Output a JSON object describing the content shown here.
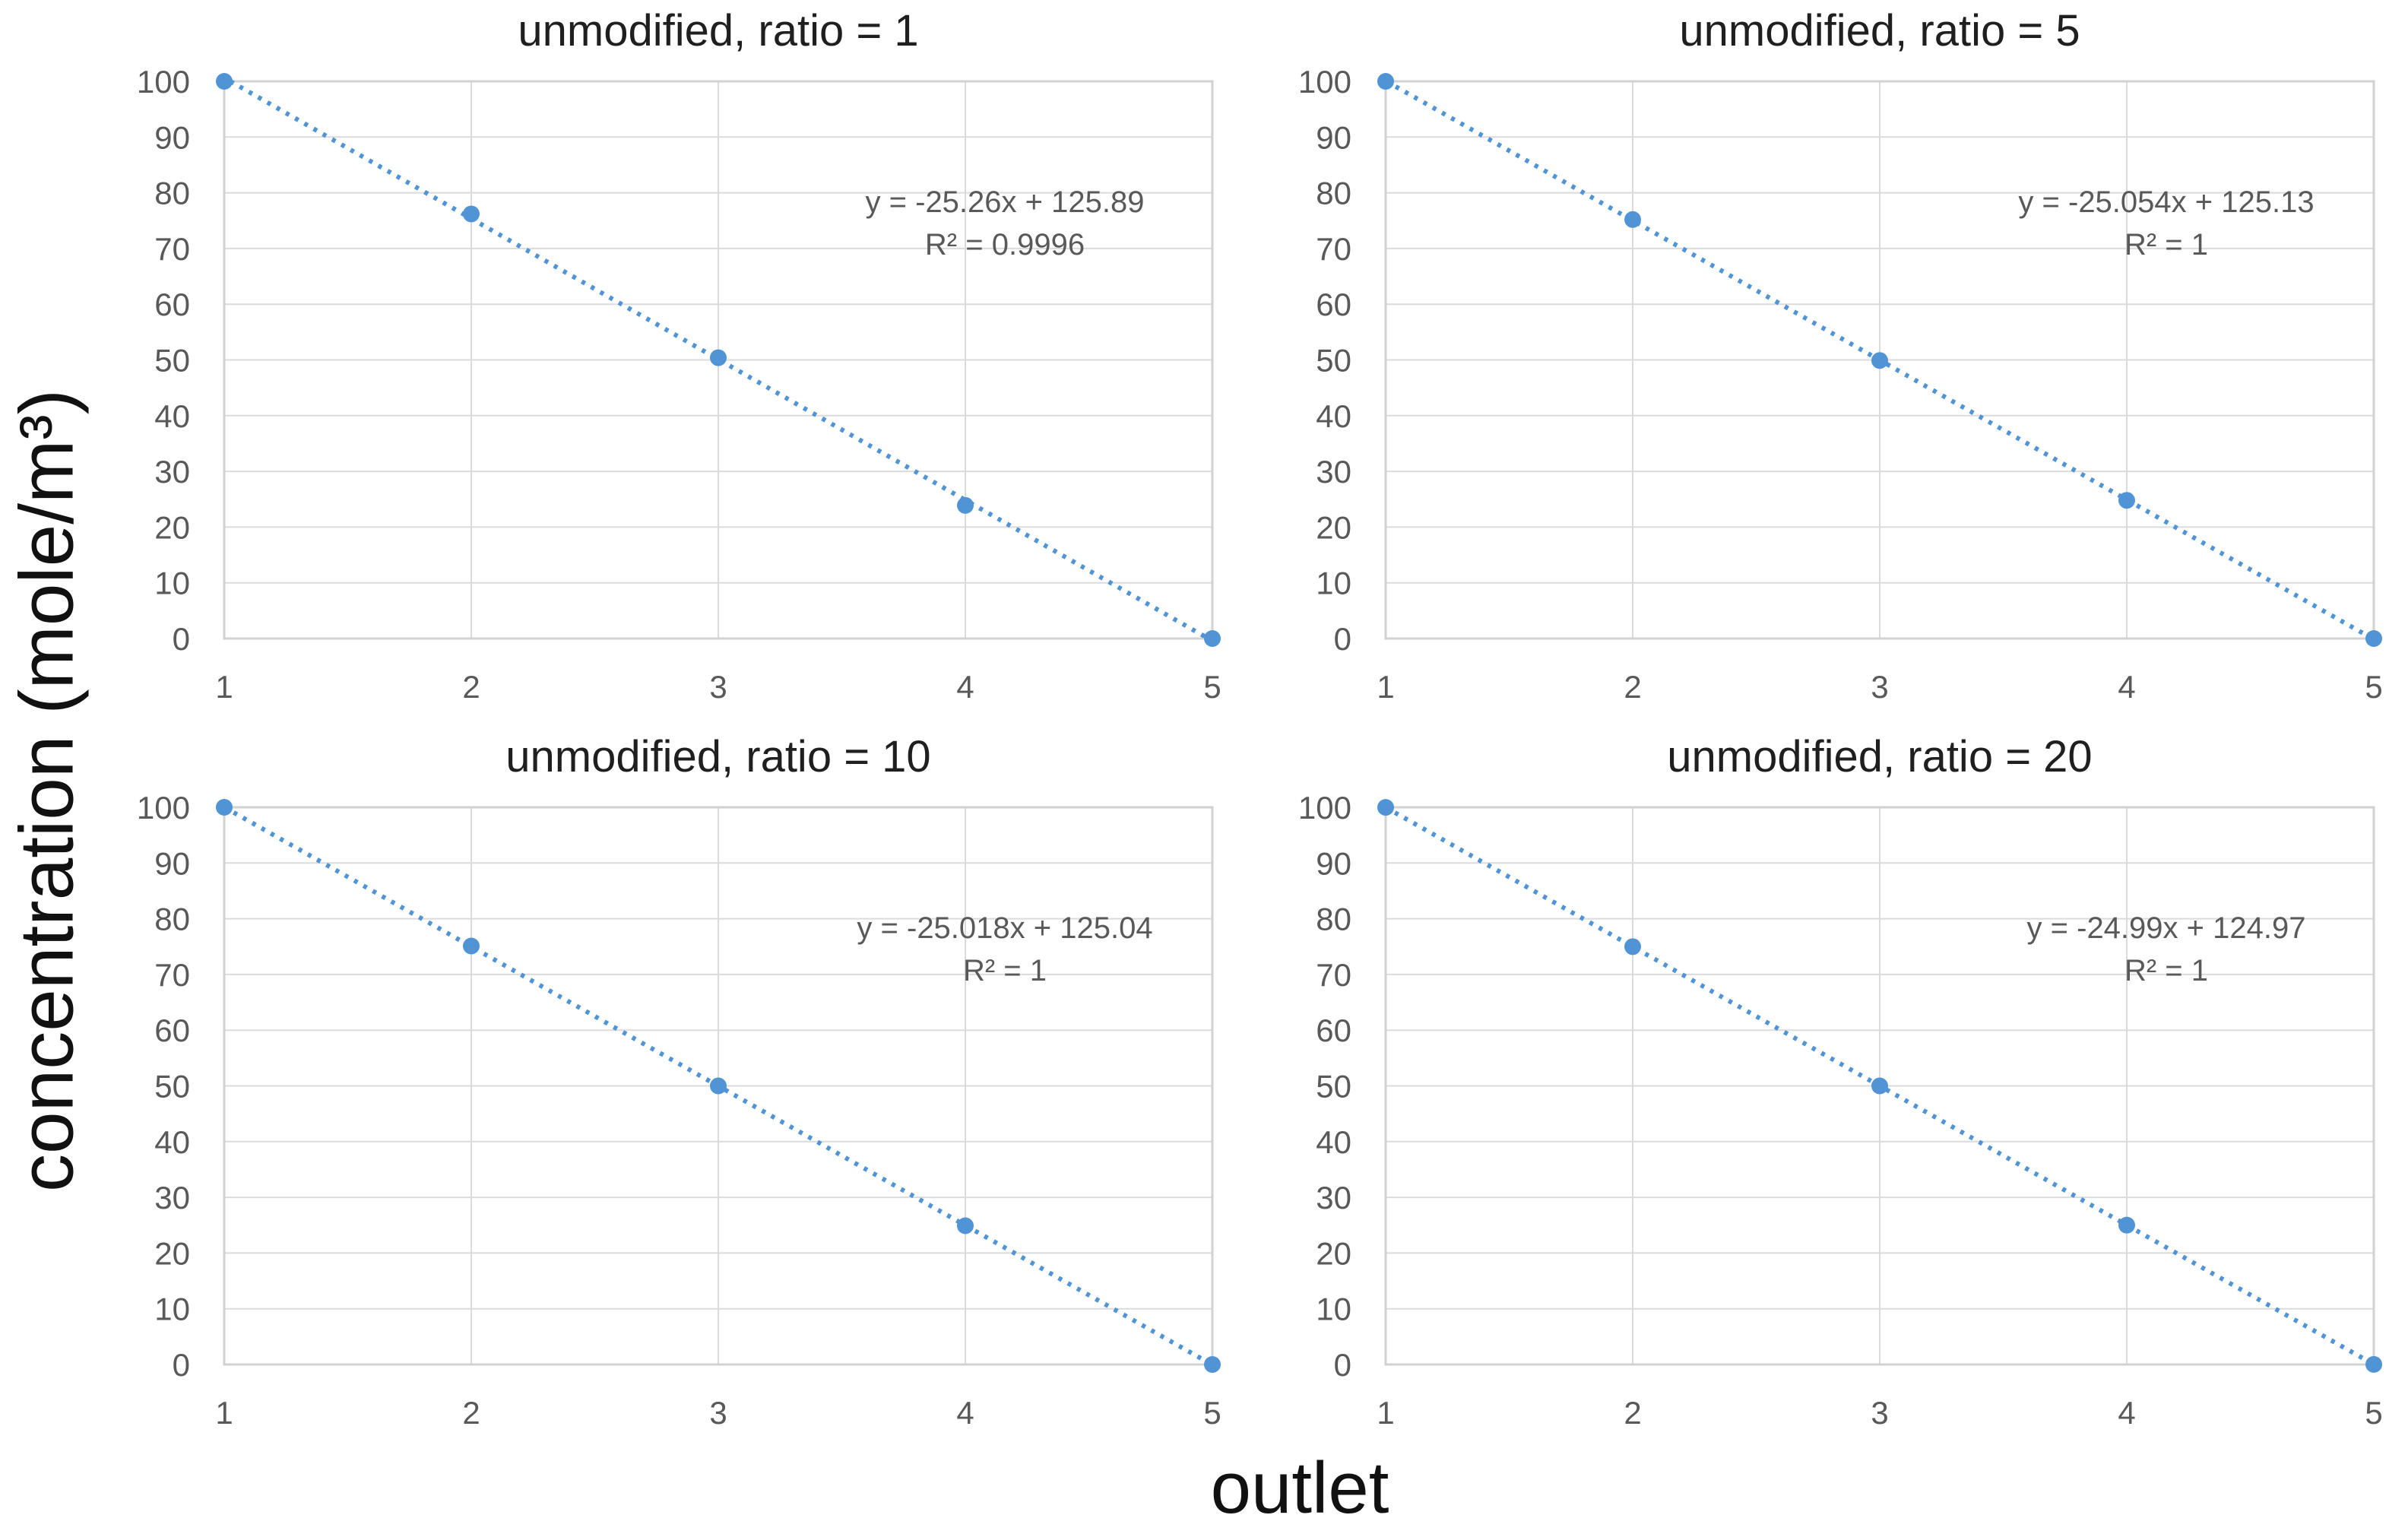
{
  "figure": {
    "xlabel": "outlet",
    "ylabel": "concentration (mole/m³)",
    "background": "#ffffff"
  },
  "colors": {
    "series_blue": "#5094D6",
    "gridline": "#DBDBDB",
    "plot_border": "#D2D2D2",
    "tick_text": "#595959",
    "equation_text": "#595959",
    "title_text": "#1f1f1f",
    "axis_label_text": "#111111"
  },
  "chart_data": [
    {
      "type": "scatter",
      "title": "unmodified, ratio = 1",
      "x": [
        1,
        2,
        3,
        4,
        5
      ],
      "y": [
        100,
        76.2,
        50.4,
        23.9,
        0
      ],
      "trendline": {
        "slope": -25.26,
        "intercept": 125.89,
        "style": "dotted"
      },
      "equation": "y = -25.26x + 125.89",
      "r_squared": "R² = 0.9996",
      "xlim": [
        1,
        5
      ],
      "ylim": [
        0,
        100
      ],
      "x_ticks": [
        1,
        2,
        3,
        4,
        5
      ],
      "y_ticks": [
        0,
        10,
        20,
        30,
        40,
        50,
        60,
        70,
        80,
        90,
        100
      ],
      "grid": true,
      "legend": "none"
    },
    {
      "type": "scatter",
      "title": "unmodified, ratio = 5",
      "x": [
        1,
        2,
        3,
        4,
        5
      ],
      "y": [
        100,
        75.2,
        49.9,
        24.8,
        0
      ],
      "trendline": {
        "slope": -25.054,
        "intercept": 125.13,
        "style": "dotted"
      },
      "equation": "y = -25.054x + 125.13",
      "r_squared": "R² = 1",
      "xlim": [
        1,
        5
      ],
      "ylim": [
        0,
        100
      ],
      "x_ticks": [
        1,
        2,
        3,
        4,
        5
      ],
      "y_ticks": [
        0,
        10,
        20,
        30,
        40,
        50,
        60,
        70,
        80,
        90,
        100
      ],
      "grid": true,
      "legend": "none"
    },
    {
      "type": "scatter",
      "title": "unmodified, ratio = 10",
      "x": [
        1,
        2,
        3,
        4,
        5
      ],
      "y": [
        100,
        75.1,
        50,
        24.9,
        0
      ],
      "trendline": {
        "slope": -25.018,
        "intercept": 125.04,
        "style": "dotted"
      },
      "equation": "y = -25.018x + 125.04",
      "r_squared": "R² = 1",
      "xlim": [
        1,
        5
      ],
      "ylim": [
        0,
        100
      ],
      "x_ticks": [
        1,
        2,
        3,
        4,
        5
      ],
      "y_ticks": [
        0,
        10,
        20,
        30,
        40,
        50,
        60,
        70,
        80,
        90,
        100
      ],
      "grid": true,
      "legend": "none"
    },
    {
      "type": "scatter",
      "title": "unmodified, ratio = 20",
      "x": [
        1,
        2,
        3,
        4,
        5
      ],
      "y": [
        99.98,
        74.99,
        50,
        25.01,
        0.02
      ],
      "trendline": {
        "slope": -24.99,
        "intercept": 124.97,
        "style": "dotted"
      },
      "equation": "y = -24.99x + 124.97",
      "r_squared": "R² = 1",
      "xlim": [
        1,
        5
      ],
      "ylim": [
        0,
        100
      ],
      "x_ticks": [
        1,
        2,
        3,
        4,
        5
      ],
      "y_ticks": [
        0,
        10,
        20,
        30,
        40,
        50,
        60,
        70,
        80,
        90,
        100
      ],
      "grid": true,
      "legend": "none"
    }
  ]
}
